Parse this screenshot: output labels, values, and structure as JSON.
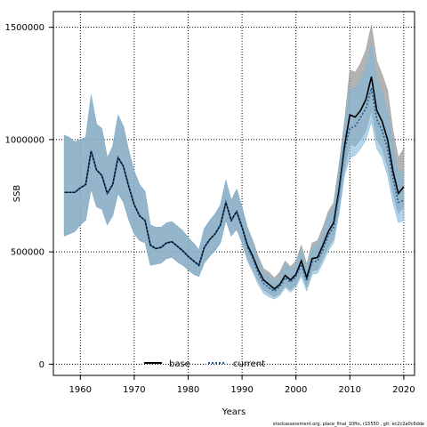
{
  "chart_data": {
    "type": "line",
    "title": "",
    "xlabel": "Years",
    "ylabel": "SSB",
    "xlim": [
      1955,
      2022
    ],
    "ylim": [
      -50000,
      1570000
    ],
    "x_ticks": [
      1960,
      1970,
      1980,
      1990,
      2000,
      2010,
      2020
    ],
    "x_tick_labels": [
      "1960",
      "1970",
      "1980",
      "1990",
      "2000",
      "2010",
      "2020"
    ],
    "y_ticks": [
      0,
      500000,
      1000000,
      1500000
    ],
    "y_tick_labels": [
      "0",
      "500000",
      "1000000",
      "1500000"
    ],
    "grid": true,
    "legend_position": "bottom",
    "footer": "stockassessment.org, place_final_10ftx, r15550 , git: ec2c2a0c6dde",
    "years": [
      1957,
      1958,
      1959,
      1960,
      1961,
      1962,
      1963,
      1964,
      1965,
      1966,
      1967,
      1968,
      1969,
      1970,
      1971,
      1972,
      1973,
      1974,
      1975,
      1976,
      1977,
      1978,
      1979,
      1980,
      1981,
      1982,
      1983,
      1984,
      1985,
      1986,
      1987,
      1988,
      1989,
      1990,
      1991,
      1992,
      1993,
      1994,
      1995,
      1996,
      1997,
      1998,
      1999,
      2000,
      2001,
      2002,
      2003,
      2004,
      2005,
      2006,
      2007,
      2008,
      2009,
      2010,
      2011,
      2012,
      2013,
      2014,
      2015,
      2016,
      2017,
      2018,
      2019,
      2020
    ],
    "series": [
      {
        "name": "base",
        "color": "#000000",
        "values": [
          765000,
          765000,
          765000,
          785000,
          800000,
          950000,
          865000,
          840000,
          760000,
          800000,
          920000,
          880000,
          790000,
          710000,
          660000,
          640000,
          530000,
          515000,
          520000,
          540000,
          545000,
          525000,
          505000,
          480000,
          460000,
          440000,
          520000,
          555000,
          580000,
          620000,
          720000,
          640000,
          680000,
          610000,
          530000,
          480000,
          420000,
          375000,
          355000,
          335000,
          355000,
          395000,
          375000,
          400000,
          460000,
          385000,
          470000,
          475000,
          530000,
          590000,
          630000,
          780000,
          970000,
          1110000,
          1100000,
          1130000,
          1180000,
          1280000,
          1130000,
          1080000,
          1000000,
          860000,
          760000,
          790000
        ]
      },
      {
        "name": "current",
        "color": "#1f5c99",
        "values": [
          765000,
          765000,
          765000,
          785000,
          800000,
          950000,
          865000,
          840000,
          760000,
          800000,
          920000,
          880000,
          790000,
          710000,
          660000,
          640000,
          530000,
          515000,
          520000,
          540000,
          545000,
          525000,
          505000,
          480000,
          460000,
          440000,
          520000,
          555000,
          580000,
          620000,
          720000,
          640000,
          680000,
          610000,
          520000,
          470000,
          405000,
          360000,
          340000,
          325000,
          345000,
          385000,
          365000,
          390000,
          445000,
          370000,
          455000,
          460000,
          510000,
          575000,
          610000,
          760000,
          950000,
          1050000,
          1060000,
          1100000,
          1140000,
          1230000,
          1090000,
          1040000,
          960000,
          830000,
          720000,
          730000
        ]
      }
    ],
    "bands": [
      {
        "name": "base",
        "color": "#9a9a9a",
        "lower": [
          570000,
          580000,
          590000,
          620000,
          640000,
          780000,
          700000,
          690000,
          620000,
          660000,
          760000,
          720000,
          640000,
          580000,
          550000,
          540000,
          440000,
          445000,
          450000,
          470000,
          475000,
          455000,
          440000,
          420000,
          400000,
          390000,
          450000,
          480000,
          505000,
          540000,
          640000,
          570000,
          600000,
          540000,
          470000,
          420000,
          370000,
          330000,
          315000,
          300000,
          315000,
          350000,
          330000,
          355000,
          405000,
          340000,
          415000,
          420000,
          470000,
          520000,
          560000,
          690000,
          860000,
          980000,
          970000,
          1000000,
          1040000,
          1130000,
          1000000,
          960000,
          880000,
          760000,
          670000,
          700000
        ],
        "upper": [
          1020000,
          1010000,
          990000,
          1000000,
          1010000,
          1200000,
          1070000,
          1050000,
          920000,
          970000,
          1110000,
          1060000,
          950000,
          860000,
          800000,
          770000,
          620000,
          610000,
          610000,
          630000,
          635000,
          615000,
          595000,
          565000,
          540000,
          510000,
          605000,
          640000,
          670000,
          710000,
          820000,
          730000,
          780000,
          700000,
          610000,
          550000,
          480000,
          425000,
          410000,
          385000,
          410000,
          460000,
          435000,
          460000,
          530000,
          445000,
          540000,
          550000,
          610000,
          680000,
          720000,
          890000,
          1080000,
          1310000,
          1300000,
          1340000,
          1400000,
          1510000,
          1350000,
          1290000,
          1220000,
          1040000,
          920000,
          960000
        ]
      },
      {
        "name": "current",
        "color": "#7fb6d9",
        "lower": [
          570000,
          580000,
          590000,
          620000,
          640000,
          780000,
          700000,
          690000,
          620000,
          660000,
          760000,
          720000,
          640000,
          580000,
          550000,
          540000,
          440000,
          445000,
          450000,
          470000,
          475000,
          455000,
          440000,
          420000,
          400000,
          390000,
          450000,
          480000,
          505000,
          540000,
          640000,
          570000,
          600000,
          540000,
          460000,
          410000,
          355000,
          315000,
          300000,
          290000,
          305000,
          340000,
          320000,
          345000,
          390000,
          325000,
          400000,
          405000,
          450000,
          505000,
          540000,
          670000,
          840000,
          920000,
          930000,
          960000,
          1000000,
          1080000,
          960000,
          920000,
          840000,
          720000,
          630000,
          640000
        ],
        "upper": [
          1020000,
          1010000,
          990000,
          1000000,
          1010000,
          1200000,
          1070000,
          1050000,
          920000,
          970000,
          1110000,
          1060000,
          950000,
          860000,
          800000,
          770000,
          620000,
          610000,
          610000,
          630000,
          635000,
          615000,
          595000,
          565000,
          540000,
          510000,
          605000,
          640000,
          670000,
          710000,
          820000,
          730000,
          780000,
          700000,
          600000,
          540000,
          465000,
          410000,
          390000,
          370000,
          395000,
          445000,
          420000,
          445000,
          510000,
          425000,
          520000,
          530000,
          585000,
          660000,
          700000,
          860000,
          1060000,
          1230000,
          1230000,
          1270000,
          1320000,
          1430000,
          1270000,
          1210000,
          1130000,
          980000,
          850000,
          870000
        ]
      }
    ]
  }
}
